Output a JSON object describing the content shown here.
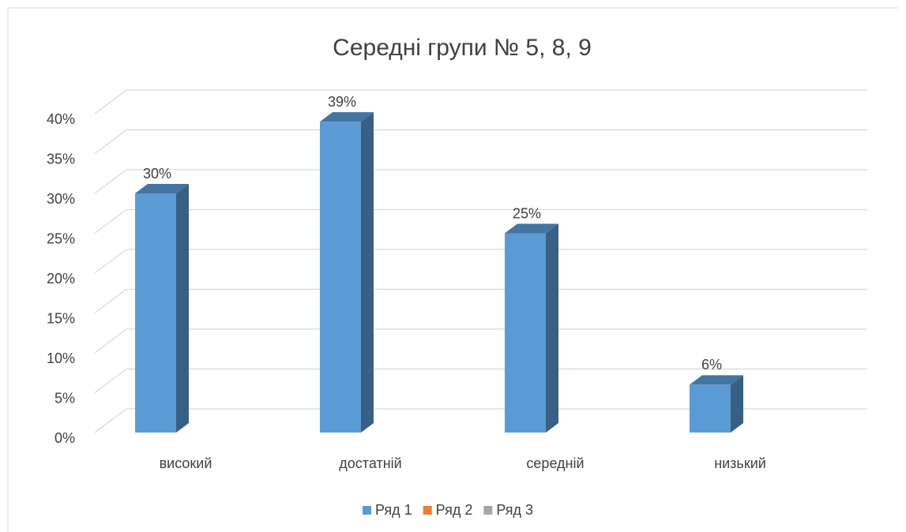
{
  "chart_data": {
    "type": "bar",
    "title": "Середні групи № 5, 8, 9",
    "categories": [
      "високий",
      "достатній",
      "середній",
      "низький"
    ],
    "series": [
      {
        "name": "Ряд 1",
        "color": "#5b9bd5",
        "values": [
          30,
          39,
          25,
          6
        ],
        "value_labels": [
          "30%",
          "39%",
          "25%",
          "6%"
        ]
      },
      {
        "name": "Ряд 2",
        "color": "#ed7d31",
        "values": [
          null,
          null,
          null,
          null
        ]
      },
      {
        "name": "Ряд 3",
        "color": "#a5a5a5",
        "values": [
          null,
          null,
          null,
          null
        ]
      }
    ],
    "ylim": [
      0,
      40
    ],
    "yticks": [
      {
        "value": 0,
        "label": "0%"
      },
      {
        "value": 5,
        "label": "5%"
      },
      {
        "value": 10,
        "label": "10%"
      },
      {
        "value": 15,
        "label": "15%"
      },
      {
        "value": 20,
        "label": "20%"
      },
      {
        "value": 25,
        "label": "25%"
      },
      {
        "value": 30,
        "label": "30%"
      },
      {
        "value": 35,
        "label": "35%"
      },
      {
        "value": 40,
        "label": "40%"
      }
    ],
    "grid": true,
    "legend": "bottom"
  }
}
